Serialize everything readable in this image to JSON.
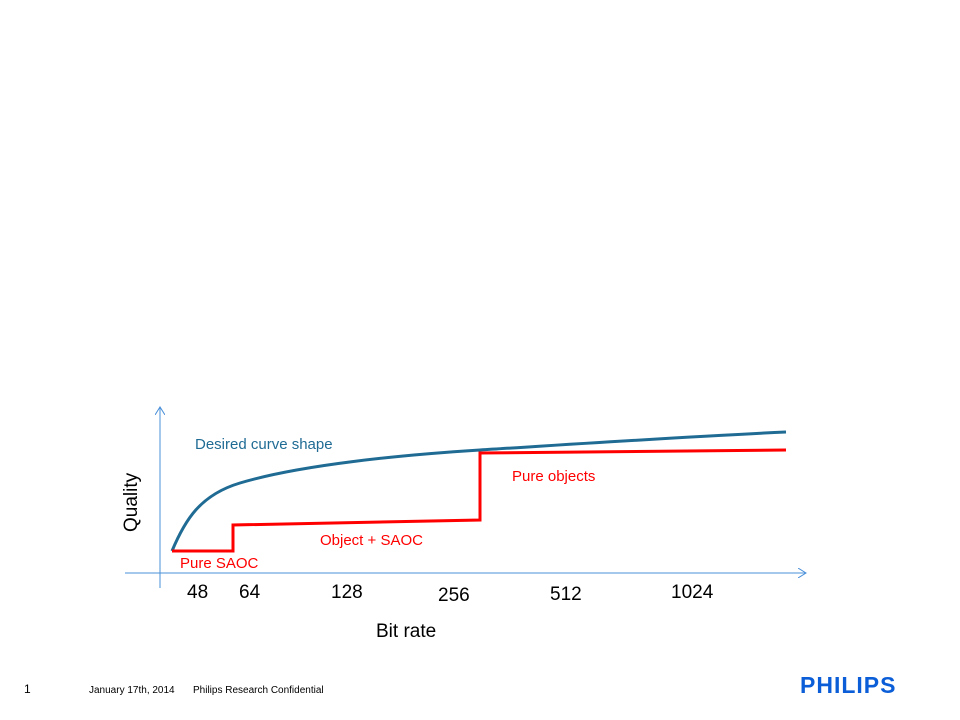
{
  "chart_data": {
    "type": "line",
    "xlabel": "Bit rate",
    "ylabel": "Quality",
    "x_tick_labels": [
      "48",
      "64",
      "128",
      "256",
      "512",
      "1024"
    ],
    "curves": [
      {
        "label": "Desired curve shape",
        "color": "#1f6b94",
        "style": "smooth rising curve"
      },
      {
        "label": "Pure SAOC",
        "color": "#ff0000",
        "style": "step"
      },
      {
        "label": "Object + SAOC",
        "color": "#ff0000",
        "style": "step"
      },
      {
        "label": "Pure objects",
        "color": "#ff0000",
        "style": "step"
      }
    ],
    "axis_color": "#4a90d9"
  },
  "footer": {
    "slide_number": "1",
    "date": "January 17th, 2014",
    "org": "Philips Research Confidential",
    "logo": "PHILIPS"
  }
}
